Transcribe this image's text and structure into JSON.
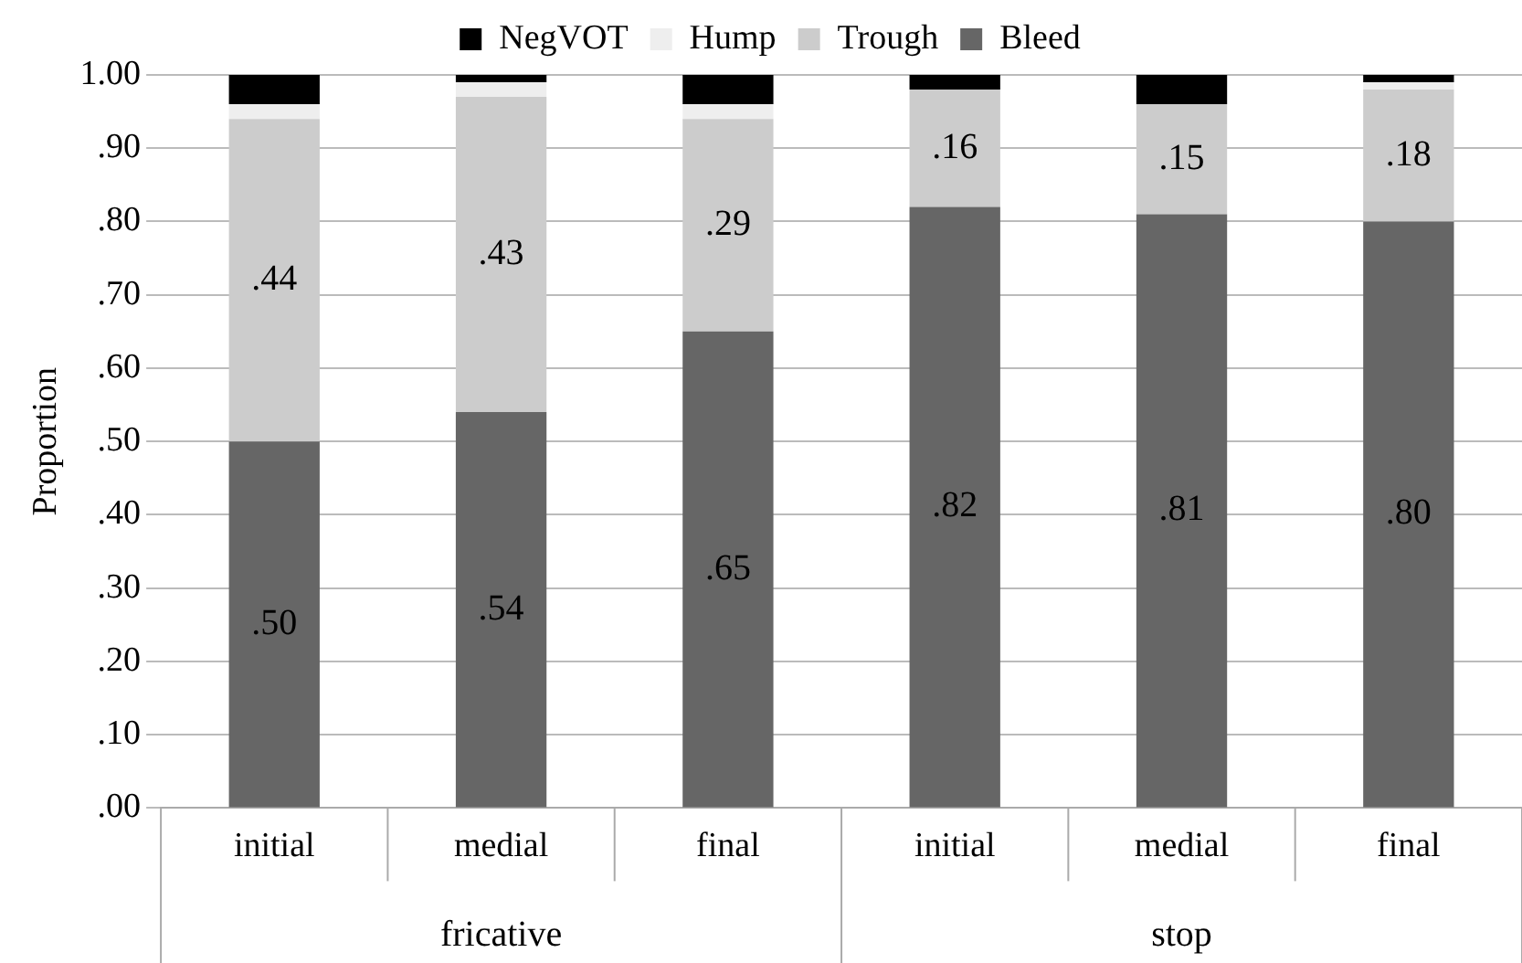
{
  "chart_data": {
    "type": "bar",
    "stacked": true,
    "ylabel": "Proportion",
    "categories": [
      "initial",
      "medial",
      "final",
      "initial",
      "medial",
      "final"
    ],
    "annotations": [
      "fricative",
      "stop"
    ],
    "series": [
      {
        "name": "Bleed",
        "color": "#666666",
        "values": [
          0.5,
          0.54,
          0.65,
          0.82,
          0.81,
          0.8
        ],
        "value_labels": [
          ".50",
          ".54",
          ".65",
          ".82",
          ".81",
          ".80"
        ]
      },
      {
        "name": "Trough",
        "color": "#cccccc",
        "values": [
          0.44,
          0.43,
          0.29,
          0.16,
          0.15,
          0.18
        ],
        "value_labels": [
          ".44",
          ".43",
          ".29",
          ".16",
          ".15",
          ".18"
        ]
      },
      {
        "name": "Hump",
        "color": "#eeeeee",
        "values": [
          0.02,
          0.02,
          0.02,
          0,
          0,
          0.01
        ]
      },
      {
        "name": "NegVOT",
        "color": "#000000",
        "values": [
          0.04,
          0.01,
          0.04,
          0.02,
          0.04,
          0.01
        ]
      }
    ],
    "ylim": [
      0,
      1
    ],
    "yticks": [
      {
        "value": 0,
        "label": ".00"
      },
      {
        "value": 0.1,
        "label": ".10"
      },
      {
        "value": 0.2,
        "label": ".20"
      },
      {
        "value": 0.3,
        "label": ".30"
      },
      {
        "value": 0.4,
        "label": ".40"
      },
      {
        "value": 0.5,
        "label": ".50"
      },
      {
        "value": 0.6,
        "label": ".60"
      },
      {
        "value": 0.7,
        "label": ".70"
      },
      {
        "value": 0.8,
        "label": ".80"
      },
      {
        "value": 0.9,
        "label": ".90"
      },
      {
        "value": 1,
        "label": "1.00"
      }
    ],
    "grid": "y",
    "legend": "top"
  }
}
